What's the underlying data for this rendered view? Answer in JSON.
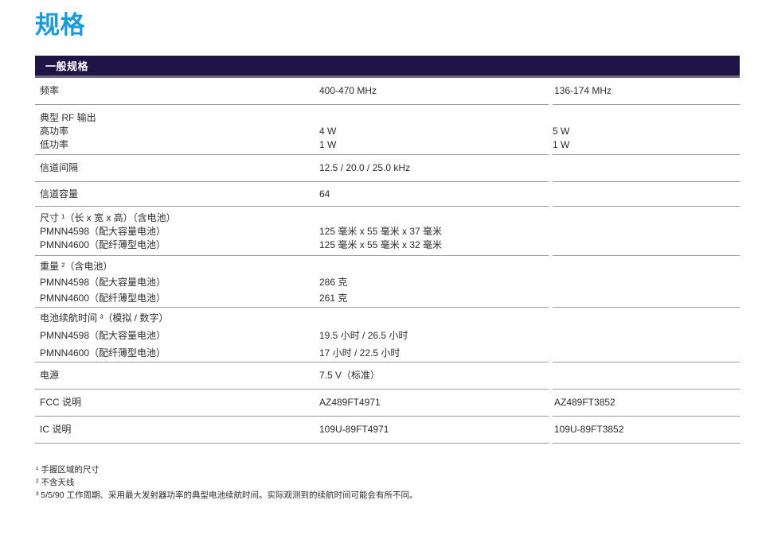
{
  "page": {
    "title": "规格",
    "section_header": "一般规格",
    "colors": {
      "title_accent": "#1b9bd7",
      "header_bar_bg": "#1e1445",
      "header_bar_underline": "#716b85",
      "row_divider": "#9b9b9b",
      "body_text": "#2d2d2d"
    }
  },
  "table": {
    "rows": [
      {
        "label": [
          "频率"
        ],
        "col1": [
          "400-470 MHz"
        ],
        "col2": [
          "136-174 MHz"
        ]
      },
      {
        "label": [
          "典型 RF 输出",
          "高功率",
          "低功率"
        ],
        "col1": [
          "",
          "4 W",
          "1 W"
        ],
        "col2": [
          "",
          "5 W",
          "1 W"
        ]
      },
      {
        "label": [
          "信道间隔"
        ],
        "col1": [
          "12.5 / 20.0 / 25.0 kHz"
        ],
        "col2": [
          ""
        ]
      },
      {
        "label": [
          "信道容量"
        ],
        "col1": [
          "64"
        ],
        "col2": [
          ""
        ]
      },
      {
        "label": [
          "尺寸 ¹（长 x 宽 x 高）（含电池）",
          "PMNN4598（配大容量电池）",
          "PMNN4600（配纤薄型电池）"
        ],
        "col1": [
          "",
          "125 毫米 x 55 毫米 x 37 毫米",
          "125 毫米 x 55 毫米 x 32 毫米"
        ],
        "col2": [
          "",
          "",
          ""
        ]
      },
      {
        "label": [
          "重量 ²（含电池）",
          "PMNN4598（配大容量电池）",
          "PMNN4600（配纤薄型电池）"
        ],
        "col1": [
          "",
          "286 克",
          "261 克"
        ],
        "col2": [
          "",
          "",
          ""
        ]
      },
      {
        "label": [
          "电池续航时间 ³（模拟 / 数字）",
          "PMNN4598（配大容量电池）",
          "PMNN4600（配纤薄型电池）"
        ],
        "col1": [
          "",
          "19.5 小时 / 26.5 小时",
          "17 小时 / 22.5 小时"
        ],
        "col2": [
          "",
          "",
          ""
        ]
      },
      {
        "label": [
          "电源"
        ],
        "col1": [
          "7.5 V（标准）"
        ],
        "col2": [
          ""
        ]
      },
      {
        "label": [
          "FCC 说明"
        ],
        "col1": [
          "AZ489FT4971"
        ],
        "col2": [
          "AZ489FT3852"
        ]
      },
      {
        "label": [
          "IC 说明"
        ],
        "col1": [
          "109U-89FT4971"
        ],
        "col2": [
          "109U-89FT3852"
        ]
      }
    ]
  },
  "footnotes": [
    "¹ 手握区域的尺寸",
    "² 不含天线",
    "³ 5/5/90 工作周期、采用最大发射器功率的典型电池续航时间。实际观测到的续航时间可能会有所不同。"
  ]
}
